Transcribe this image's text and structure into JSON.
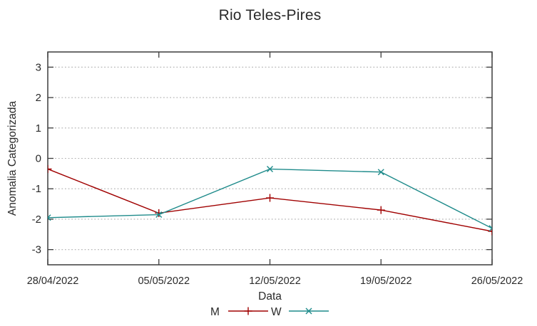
{
  "chart_data": {
    "type": "line",
    "title": "Rio Teles-Pires",
    "xlabel": "Data",
    "ylabel": "Anomalia Categorizada",
    "categories": [
      "28/04/2022",
      "05/05/2022",
      "12/05/2022",
      "19/05/2022",
      "26/05/2022"
    ],
    "series": [
      {
        "name": "M",
        "color": "#a00000",
        "marker": "plus",
        "values": [
          -0.35,
          -1.8,
          -1.3,
          -1.7,
          -2.4
        ]
      },
      {
        "name": "W",
        "color": "#1f8b8b",
        "marker": "cross",
        "values": [
          -1.95,
          -1.85,
          -0.35,
          -0.45,
          -2.3
        ]
      }
    ],
    "ylim": [
      -3.5,
      3.5
    ],
    "yticks": [
      3,
      2,
      1,
      0,
      -1,
      -2,
      -3
    ],
    "grid": "horizontal-dotted",
    "legend_position": "bottom-center"
  },
  "colors": {
    "grid": "#b0b0b0",
    "border": "#3c3c3c",
    "text": "#2a2a2a",
    "background": "#ffffff"
  }
}
